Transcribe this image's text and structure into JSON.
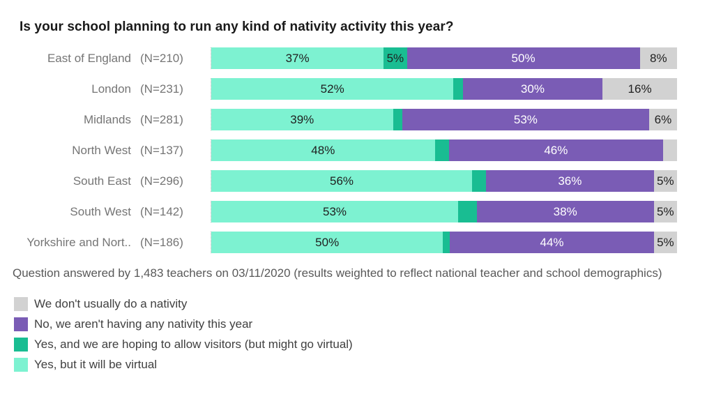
{
  "title": "Is your school planning to run any kind of nativity activity this year?",
  "footnote": "Question answered by 1,483 teachers on 03/11/2020 (results weighted to reflect national teacher and school demographics)",
  "colors": {
    "axis_line": "#b5b5b5",
    "title_text": "#1a1a1a",
    "row_label_text": "#757575",
    "footnote_text": "#595959",
    "legend_text": "#404040"
  },
  "chart_data": {
    "type": "bar",
    "orientation": "horizontal",
    "stacked": true,
    "unit": "%",
    "xlim": [
      0,
      100
    ],
    "grid": false,
    "legend_position": "bottom-left",
    "value_label_threshold_pct": 5,
    "categories": [
      "East of England",
      "London",
      "Midlands",
      "North West",
      "South East",
      "South West",
      "Yorkshire and Nort.."
    ],
    "sample_sizes": [
      "(N=210)",
      "(N=231)",
      "(N=281)",
      "(N=137)",
      "(N=296)",
      "(N=142)",
      "(N=186)"
    ],
    "series": [
      {
        "name": "Yes, but it will be virtual",
        "slug": "yes-virtual",
        "color": "#7df2d1",
        "text_color": "#1f1f1f",
        "values": [
          37,
          52,
          39,
          48,
          56,
          53,
          50
        ]
      },
      {
        "name": "Yes, and we are hoping to allow visitors (but might go virtual)",
        "slug": "yes-visitors",
        "color": "#19bd92",
        "text_color": "#1f1f1f",
        "values": [
          5,
          2,
          2,
          3,
          3,
          4,
          1.5
        ]
      },
      {
        "name": "No, we aren't having any nativity this year",
        "slug": "no-this-year",
        "color": "#7a5cb5",
        "text_color": "#ffffff",
        "values": [
          50,
          30,
          53,
          46,
          36,
          38,
          44
        ]
      },
      {
        "name": "We don't usually do a nativity",
        "slug": "dont-usually",
        "color": "#d2d2d2",
        "text_color": "#1f1f1f",
        "values": [
          8,
          16,
          6,
          3,
          5,
          5,
          5
        ]
      }
    ],
    "legend_order": [
      3,
      2,
      1,
      0
    ]
  }
}
